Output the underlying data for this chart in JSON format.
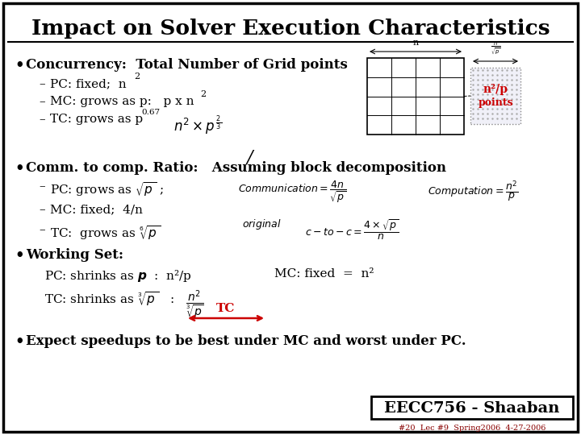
{
  "title": "Impact on Solver Execution Characteristics",
  "bg_color": "#ffffff",
  "border_color": "#000000",
  "title_color": "#000000",
  "tc_color": "#cc0000",
  "n2p_color": "#cc0000",
  "footer_text": "EECC756 - Shaaban",
  "footer_sub": "#20  Lec #9  Spring2006  4-27-2006"
}
